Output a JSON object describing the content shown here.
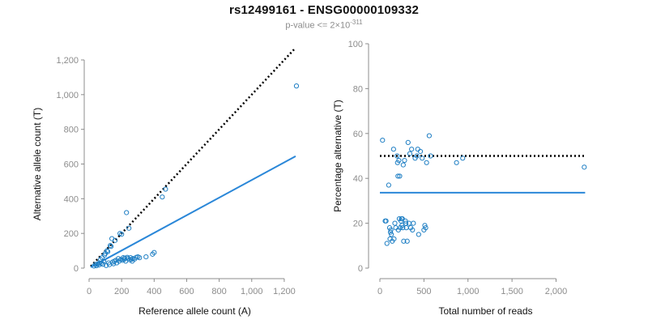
{
  "title": "rs12499161 - ENSG00000109332",
  "subtitle": {
    "prefix": "p-value <= 2×10",
    "exponent": "-311"
  },
  "colors": {
    "points": "#1f7fc4",
    "fit": "#2a87d8",
    "expected": "#000000",
    "tick_text": "#8c8c8c",
    "axis": "#8c8c8c"
  },
  "chart_data": [
    {
      "type": "scatter",
      "xlabel": "Reference allele count (A)",
      "ylabel": "Alternative allele count (T)",
      "xlim": [
        0,
        1300
      ],
      "ylim": [
        0,
        1200
      ],
      "xticks": [
        {
          "value": 0,
          "label": "0"
        },
        {
          "value": 200,
          "label": "200"
        },
        {
          "value": 400,
          "label": "400"
        },
        {
          "value": 600,
          "label": "600"
        },
        {
          "value": 800,
          "label": "800"
        },
        {
          "value": 1000,
          "label": "1,000"
        },
        {
          "value": 1200,
          "label": "1,200"
        }
      ],
      "yticks": [
        {
          "value": 0,
          "label": "0"
        },
        {
          "value": 200,
          "label": "200"
        },
        {
          "value": 400,
          "label": "400"
        },
        {
          "value": 600,
          "label": "600"
        },
        {
          "value": 800,
          "label": "800"
        },
        {
          "value": 1000,
          "label": "1,000"
        },
        {
          "value": 1200,
          "label": "1,200"
        }
      ],
      "lines": [
        {
          "style": "dotted",
          "color_key": "expected",
          "x": [
            10,
            1270
          ],
          "y": [
            10,
            1270
          ]
        },
        {
          "style": "solid",
          "color_key": "fit",
          "x": [
            10,
            1270
          ],
          "y": [
            5,
            645
          ]
        }
      ],
      "points": [
        [
          30,
          12
        ],
        [
          40,
          22
        ],
        [
          45,
          14
        ],
        [
          55,
          25
        ],
        [
          60,
          18
        ],
        [
          65,
          30
        ],
        [
          70,
          50
        ],
        [
          75,
          28
        ],
        [
          80,
          60
        ],
        [
          85,
          22
        ],
        [
          90,
          40
        ],
        [
          95,
          75
        ],
        [
          100,
          85
        ],
        [
          105,
          15
        ],
        [
          110,
          100
        ],
        [
          115,
          95
        ],
        [
          120,
          30
        ],
        [
          125,
          20
        ],
        [
          130,
          130
        ],
        [
          135,
          125
        ],
        [
          140,
          170
        ],
        [
          145,
          35
        ],
        [
          150,
          25
        ],
        [
          155,
          40
        ],
        [
          160,
          160
        ],
        [
          165,
          45
        ],
        [
          170,
          30
        ],
        [
          180,
          55
        ],
        [
          185,
          40
        ],
        [
          190,
          200
        ],
        [
          195,
          50
        ],
        [
          200,
          195
        ],
        [
          205,
          45
        ],
        [
          210,
          60
        ],
        [
          215,
          50
        ],
        [
          220,
          58
        ],
        [
          225,
          40
        ],
        [
          230,
          320
        ],
        [
          235,
          62
        ],
        [
          240,
          55
        ],
        [
          245,
          230
        ],
        [
          250,
          48
        ],
        [
          255,
          60
        ],
        [
          260,
          50
        ],
        [
          265,
          40
        ],
        [
          270,
          55
        ],
        [
          280,
          52
        ],
        [
          290,
          62
        ],
        [
          300,
          65
        ],
        [
          310,
          60
        ],
        [
          350,
          65
        ],
        [
          390,
          80
        ],
        [
          400,
          90
        ],
        [
          450,
          410
        ],
        [
          470,
          455
        ],
        [
          1275,
          1050
        ]
      ]
    },
    {
      "type": "scatter",
      "xlabel": "Total number of reads",
      "ylabel": "Percentage alternative (T)",
      "xlim": [
        0,
        2400
      ],
      "ylim": [
        0,
        100
      ],
      "xticks": [
        {
          "value": 0,
          "label": "0"
        },
        {
          "value": 500,
          "label": "500"
        },
        {
          "value": 1000,
          "label": "1,000"
        },
        {
          "value": 1500,
          "label": "1,500"
        },
        {
          "value": 2000,
          "label": "2,000"
        }
      ],
      "yticks": [
        {
          "value": 0,
          "label": "0"
        },
        {
          "value": 20,
          "label": "20"
        },
        {
          "value": 40,
          "label": "40"
        },
        {
          "value": 60,
          "label": "60"
        },
        {
          "value": 80,
          "label": "80"
        },
        {
          "value": 100,
          "label": "100"
        }
      ],
      "lines": [
        {
          "style": "dotted",
          "color_key": "expected",
          "x": [
            0,
            2330
          ],
          "y": [
            50,
            50
          ]
        },
        {
          "style": "solid",
          "color_key": "fit",
          "x": [
            0,
            2330
          ],
          "y": [
            33.6,
            33.6
          ]
        }
      ],
      "points": [
        [
          30,
          57
        ],
        [
          60,
          21
        ],
        [
          70,
          21
        ],
        [
          80,
          11
        ],
        [
          100,
          37
        ],
        [
          110,
          18
        ],
        [
          115,
          13
        ],
        [
          120,
          16
        ],
        [
          125,
          17
        ],
        [
          130,
          15
        ],
        [
          140,
          12
        ],
        [
          155,
          53
        ],
        [
          160,
          13
        ],
        [
          170,
          20
        ],
        [
          180,
          18
        ],
        [
          195,
          50
        ],
        [
          200,
          47
        ],
        [
          205,
          41
        ],
        [
          210,
          17
        ],
        [
          215,
          48
        ],
        [
          220,
          22
        ],
        [
          225,
          41
        ],
        [
          230,
          18
        ],
        [
          240,
          21
        ],
        [
          245,
          22
        ],
        [
          250,
          19
        ],
        [
          255,
          22
        ],
        [
          260,
          18
        ],
        [
          265,
          46
        ],
        [
          270,
          12
        ],
        [
          280,
          48
        ],
        [
          290,
          21
        ],
        [
          295,
          20
        ],
        [
          300,
          18
        ],
        [
          310,
          12
        ],
        [
          320,
          56
        ],
        [
          330,
          20
        ],
        [
          340,
          51
        ],
        [
          350,
          18
        ],
        [
          360,
          53
        ],
        [
          370,
          17
        ],
        [
          380,
          20
        ],
        [
          400,
          49
        ],
        [
          420,
          50
        ],
        [
          430,
          53
        ],
        [
          440,
          15
        ],
        [
          460,
          52
        ],
        [
          480,
          49
        ],
        [
          500,
          17
        ],
        [
          510,
          19
        ],
        [
          520,
          18
        ],
        [
          530,
          47
        ],
        [
          560,
          59
        ],
        [
          575,
          50
        ],
        [
          870,
          47
        ],
        [
          940,
          49
        ],
        [
          2320,
          45
        ]
      ]
    }
  ]
}
